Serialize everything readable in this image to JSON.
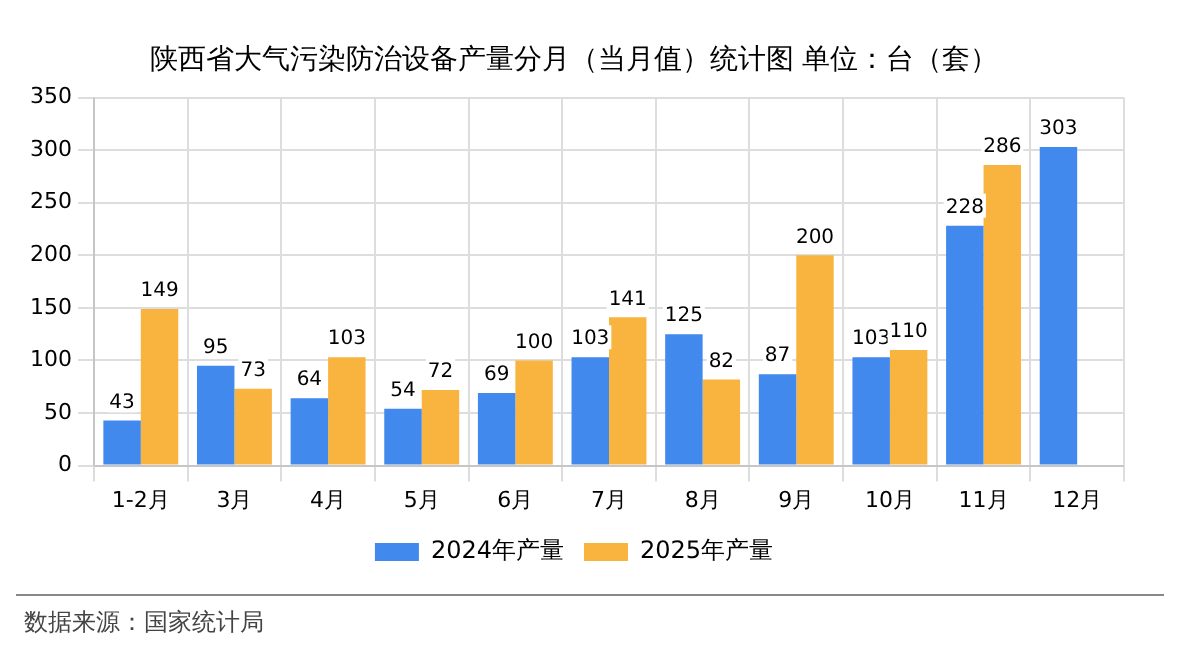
{
  "chart_data": {
    "type": "bar",
    "title": "陕西省大气污染防治设备产量分月（当月值）统计图 单位：台（套）",
    "categories": [
      "1-2月",
      "3月",
      "4月",
      "5月",
      "6月",
      "7月",
      "8月",
      "9月",
      "10月",
      "11月",
      "12月"
    ],
    "series": [
      {
        "name": "2024年产量",
        "color": "#4189ec",
        "values": [
          43,
          95,
          64,
          54,
          69,
          103,
          125,
          87,
          103,
          228,
          303
        ]
      },
      {
        "name": "2025年产量",
        "color": "#f9b440",
        "values": [
          149,
          73,
          103,
          72,
          100,
          141,
          82,
          200,
          110,
          286,
          null
        ]
      }
    ],
    "ylim": [
      0,
      350
    ],
    "yticks": [
      0,
      50,
      100,
      150,
      200,
      250,
      300,
      350
    ],
    "grid": true,
    "legend": "bottom",
    "data_labels": true,
    "annotations": [
      "数据来源：国家统计局"
    ]
  }
}
